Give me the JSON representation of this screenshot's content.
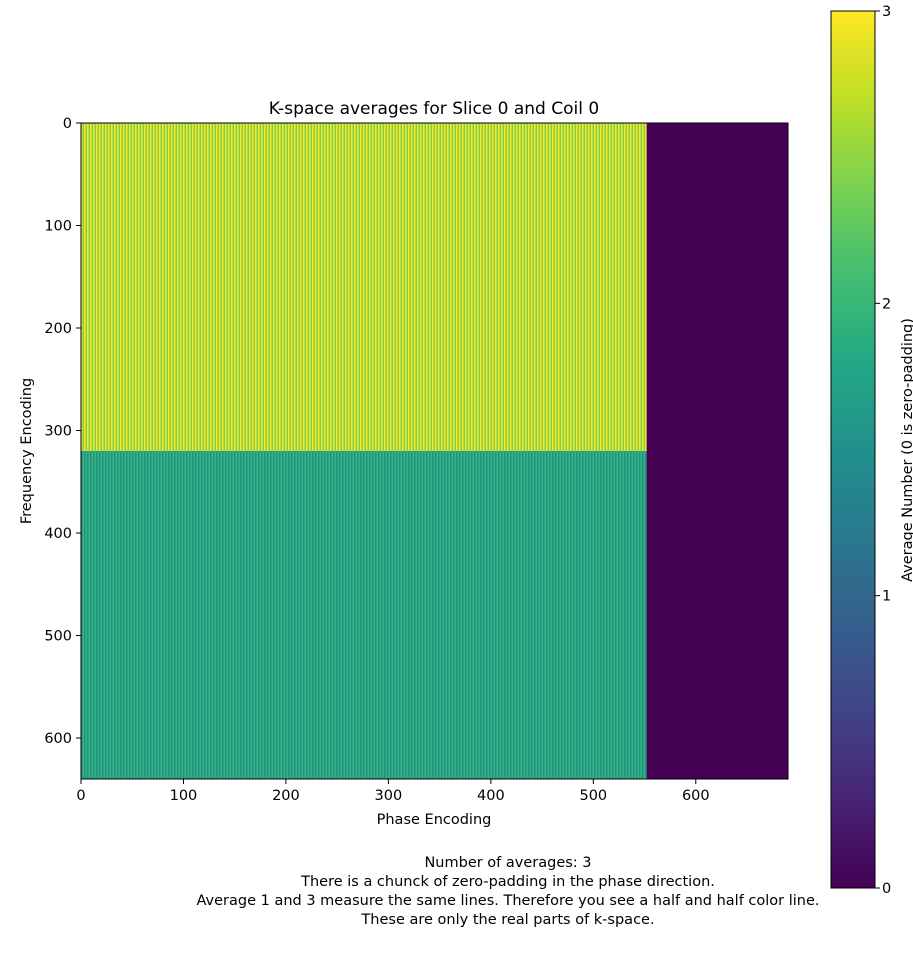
{
  "chart_data": {
    "type": "heatmap",
    "title": "K-space averages for Slice 0 and Coil 0",
    "xlabel": "Phase Encoding",
    "ylabel": "Frequency Encoding",
    "x_range": [
      0,
      690
    ],
    "y_range": [
      0,
      640
    ],
    "y_inverted": true,
    "x_ticks": [
      0,
      100,
      200,
      300,
      400,
      500,
      600
    ],
    "y_ticks": [
      0,
      100,
      200,
      300,
      400,
      500,
      600
    ],
    "colorbar": {
      "label": "Average Number (0 is zero-padding)",
      "range": [
        0,
        3
      ],
      "ticks": [
        0,
        1,
        2,
        3
      ],
      "colormap": "viridis"
    },
    "regions": [
      {
        "x": [
          0,
          552
        ],
        "y": [
          0,
          320
        ],
        "values_alternating": [
          3,
          2
        ],
        "colors": [
          "#fde725",
          "#7ad151"
        ]
      },
      {
        "x": [
          0,
          552
        ],
        "y": [
          320,
          640
        ],
        "values_alternating": [
          1,
          2
        ],
        "colors": [
          "#21908c",
          "#35b779"
        ]
      },
      {
        "x": [
          552,
          690
        ],
        "y": [
          0,
          640
        ],
        "value": 0,
        "color": "#440154"
      }
    ]
  },
  "caption": {
    "line1": "Number of averages: 3",
    "line2": "There is a chunck of zero-padding in the phase direction.",
    "line3": "Average 1 and 3 measure the same lines. Therefore you see a half and half color line.",
    "line4": "These are only the real parts of k-space."
  }
}
